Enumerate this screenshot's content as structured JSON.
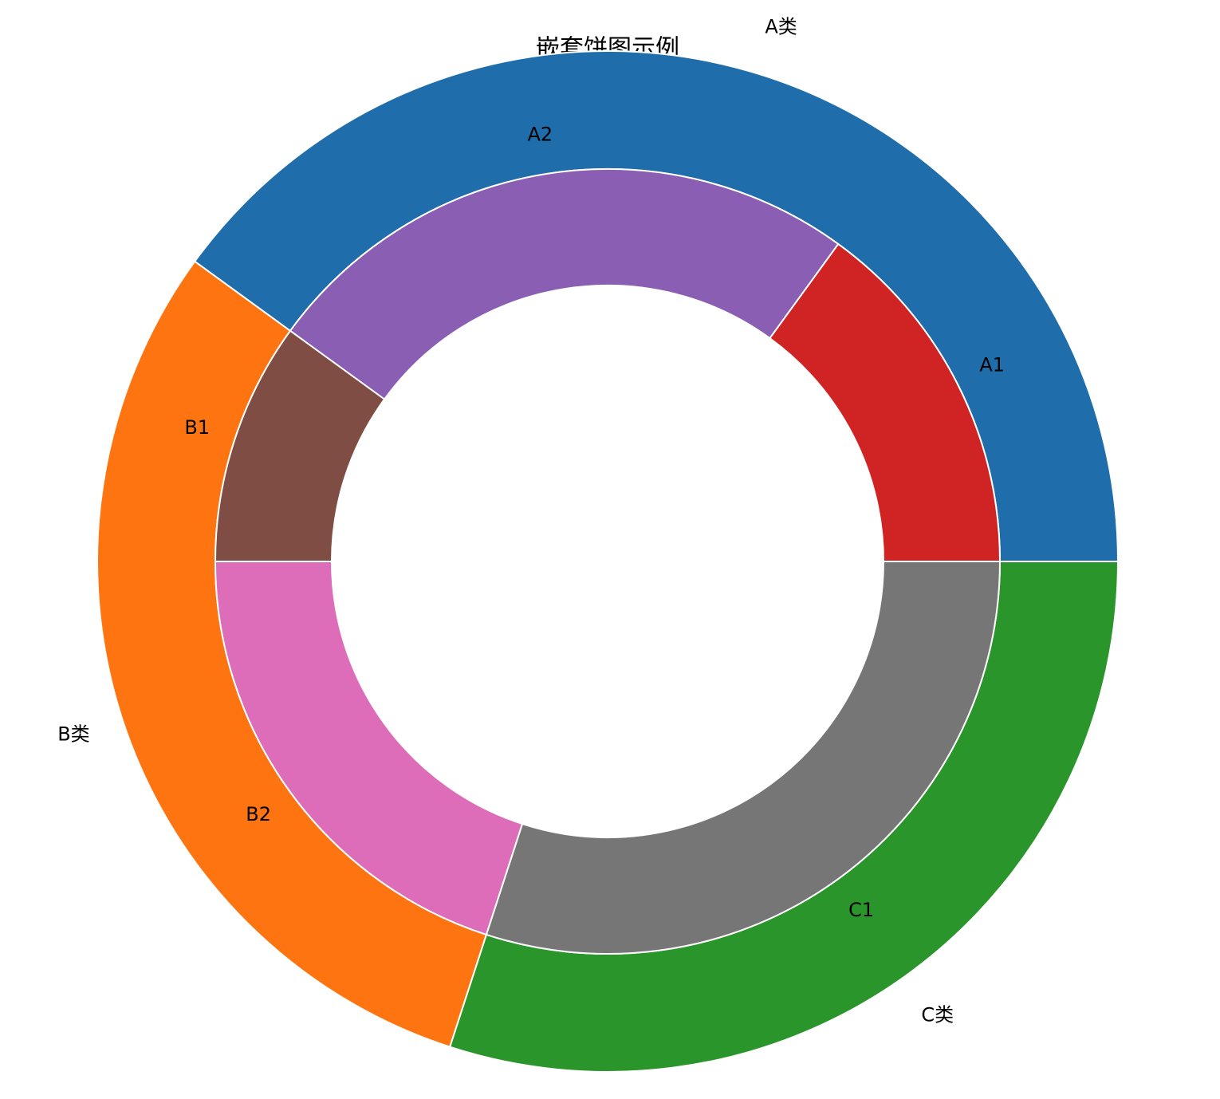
{
  "chart_data": {
    "type": "nested-pie",
    "title": "嵌套饼图示例",
    "rings": [
      {
        "categories": [
          "A类",
          "B类",
          "C类"
        ],
        "values": [
          40,
          30,
          30
        ],
        "colors": [
          "#1f6dab",
          "#fd7410",
          "#2a952a"
        ]
      },
      {
        "categories": [
          "A1",
          "A2",
          "B1",
          "B2",
          "C1"
        ],
        "values": [
          15,
          25,
          10,
          20,
          30
        ],
        "colors": [
          "#d02323",
          "#8a5eb3",
          "#7f4d44",
          "#dd6cb9",
          "#767676"
        ]
      }
    ]
  }
}
